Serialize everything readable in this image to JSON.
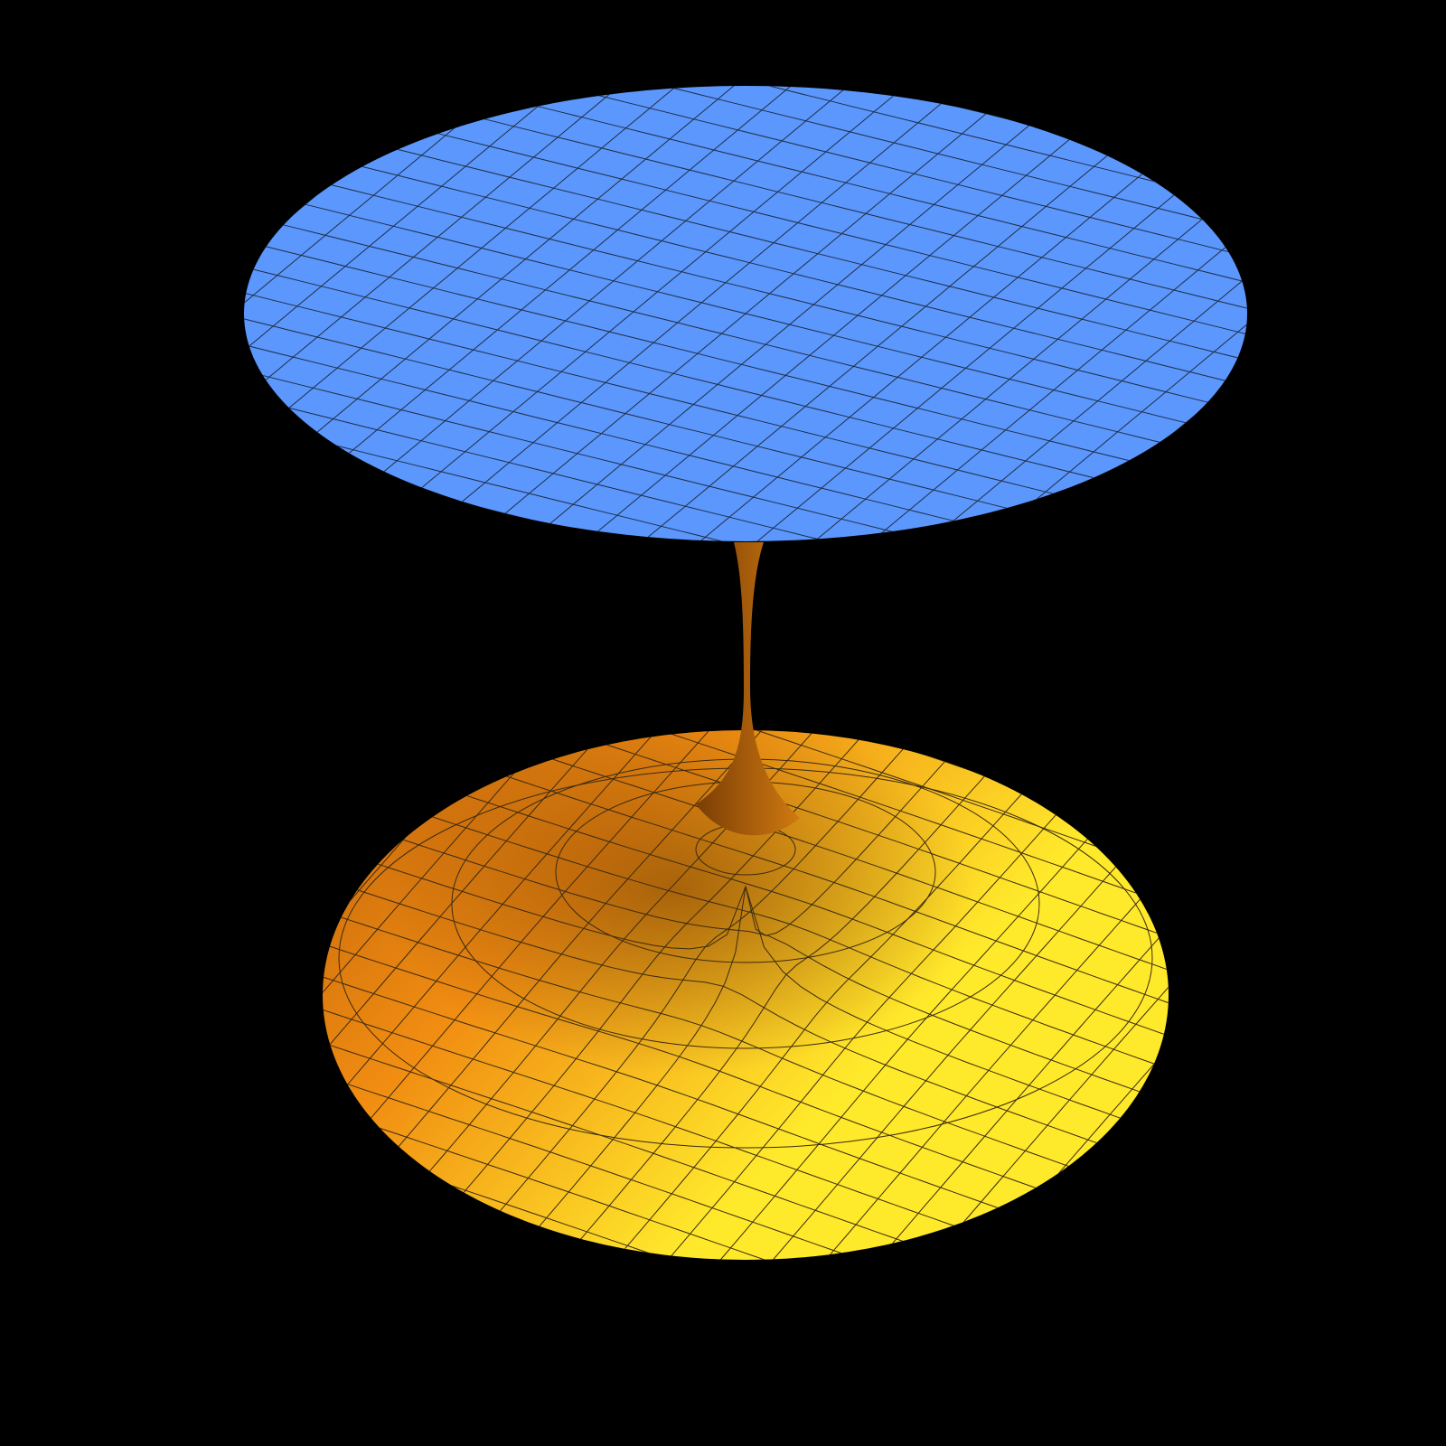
{
  "scene": {
    "background": "#000000",
    "top_sheet": {
      "color": "#5b97fc",
      "mesh_color": "#1f2d45",
      "mesh_lines": 24
    },
    "bottom_sheet": {
      "colors": [
        "#c0620a",
        "#f18d12",
        "#ffe92b"
      ],
      "mesh_color": "#3a2a10",
      "mesh_lines": 22
    },
    "throat": {
      "colors": [
        "#7a3d05",
        "#d07a10"
      ]
    }
  }
}
